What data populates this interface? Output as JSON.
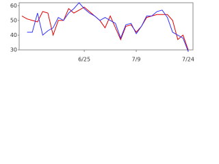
{
  "chart_data": {
    "type": "line",
    "categories": [
      null,
      null,
      null,
      null,
      null,
      null,
      null,
      null,
      null,
      null,
      null,
      null,
      "6/25",
      null,
      null,
      null,
      null,
      null,
      null,
      null,
      null,
      null,
      "7/9",
      null,
      null,
      null,
      null,
      null,
      null,
      null,
      null,
      null,
      "7/24"
    ],
    "series": [
      {
        "name": null,
        "color": "#e00000",
        "values": [
          53,
          51,
          50,
          49,
          56,
          55,
          40,
          50,
          50,
          58,
          55,
          57,
          59,
          56,
          53,
          50,
          45,
          53,
          45,
          37,
          46,
          47,
          42,
          46,
          52,
          53,
          54,
          54,
          54,
          50,
          37,
          40,
          30
        ]
      },
      {
        "name": null,
        "color": "#3030ff",
        "values": [
          null,
          42,
          42,
          55,
          40,
          43,
          45,
          52,
          50,
          55,
          58,
          62,
          58,
          55,
          53,
          50,
          52,
          50,
          48,
          38,
          47,
          48,
          41,
          46,
          53,
          53,
          56,
          57,
          52,
          42,
          40,
          38,
          29
        ]
      }
    ],
    "ylim": [
      30,
      62
    ],
    "yticks": [
      30,
      40,
      50,
      60
    ],
    "grid": false
  }
}
